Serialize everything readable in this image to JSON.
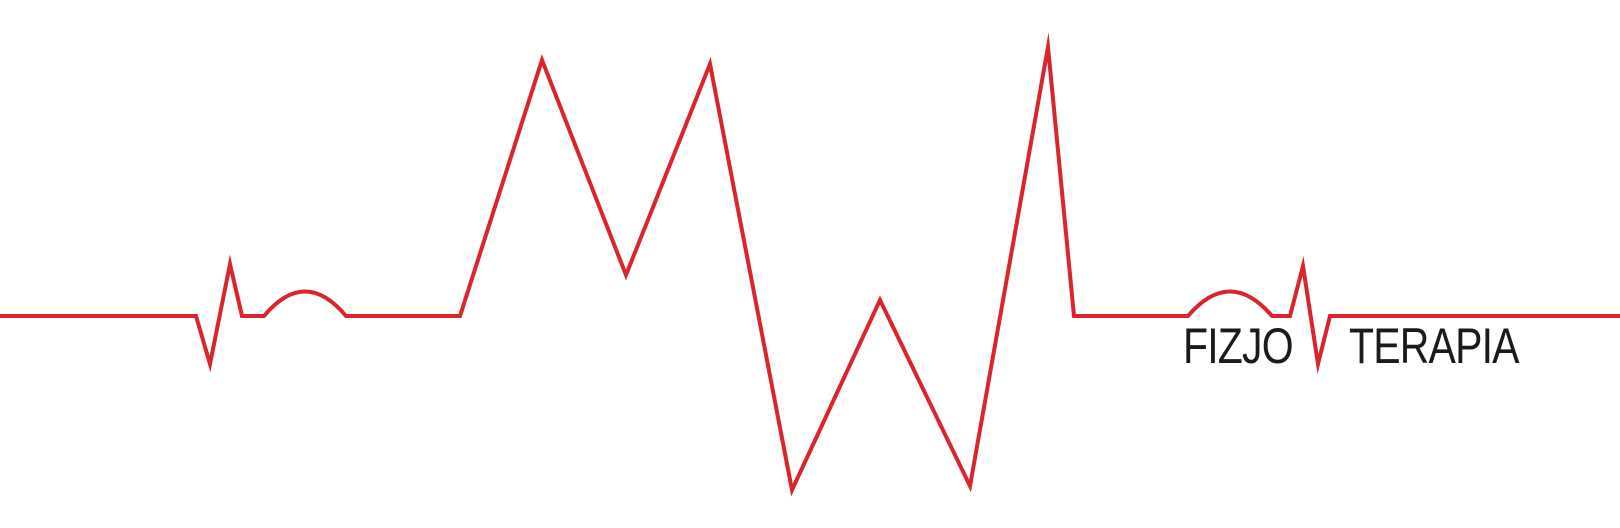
{
  "logo": {
    "word_left": "FIZJO",
    "word_right": "TERAPIA",
    "colors": {
      "line": "#d9252b",
      "text": "#1a1a1a",
      "background": "#ffffff"
    }
  }
}
